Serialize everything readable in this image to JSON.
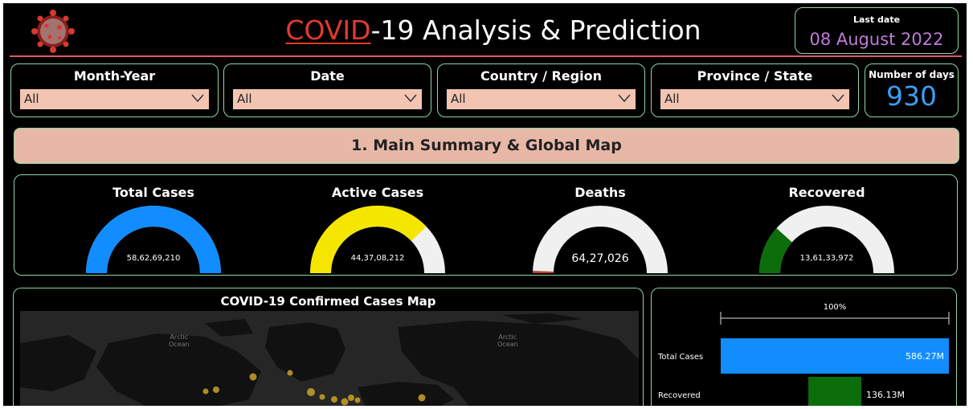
{
  "header": {
    "title_highlight": "COVID",
    "title_rest": "-19 Analysis & Prediction",
    "last_date_label": "Last date",
    "last_date_value": "08 August 2022"
  },
  "filters": [
    {
      "label": "Month-Year",
      "value": "All"
    },
    {
      "label": "Date",
      "value": "All"
    },
    {
      "label": "Country / Region",
      "value": "All"
    },
    {
      "label": "Province / State",
      "value": "All"
    }
  ],
  "number_of_days": {
    "label": "Number of days",
    "value": "930"
  },
  "section_banner": "1. Main Summary & Global Map",
  "kpis": [
    {
      "label": "Total Cases",
      "value_text": "58,62,69,210",
      "fraction": 1.0,
      "color": "#118dff"
    },
    {
      "label": "Active Cases",
      "value_text": "44,37,08,212",
      "fraction": 0.757,
      "color": "#f5e600"
    },
    {
      "label": "Deaths",
      "value_text": "64,27,026",
      "fraction": 0.011,
      "color": "#c0392b"
    },
    {
      "label": "Recovered",
      "value_text": "13,61,33,972",
      "fraction": 0.232,
      "color": "#0b6e0b"
    }
  ],
  "map": {
    "title": "COVID-19 Confirmed Cases Map",
    "ocean_labels": [
      "Arctic",
      "Ocean"
    ]
  },
  "chart_data": {
    "type": "bar",
    "orientation": "horizontal",
    "axis_label": "100%",
    "categories": [
      "Total Cases",
      "Recovered"
    ],
    "values": [
      586.27,
      136.13
    ],
    "value_labels": [
      "586.27M",
      "136.13M"
    ],
    "unit": "M",
    "colors": [
      "#118dff",
      "#0b6e0b"
    ],
    "xlim": [
      0,
      586.27
    ]
  },
  "colors": {
    "background": "#000000",
    "border": "#8fd6a6",
    "accent_red": "#e23a2f",
    "date_purple": "#c07bd8",
    "days_blue": "#3d9df2",
    "slicer_fill": "#f2c5b2",
    "banner_fill": "#e8b8a7",
    "gauge_track": "#f0f0f0"
  }
}
